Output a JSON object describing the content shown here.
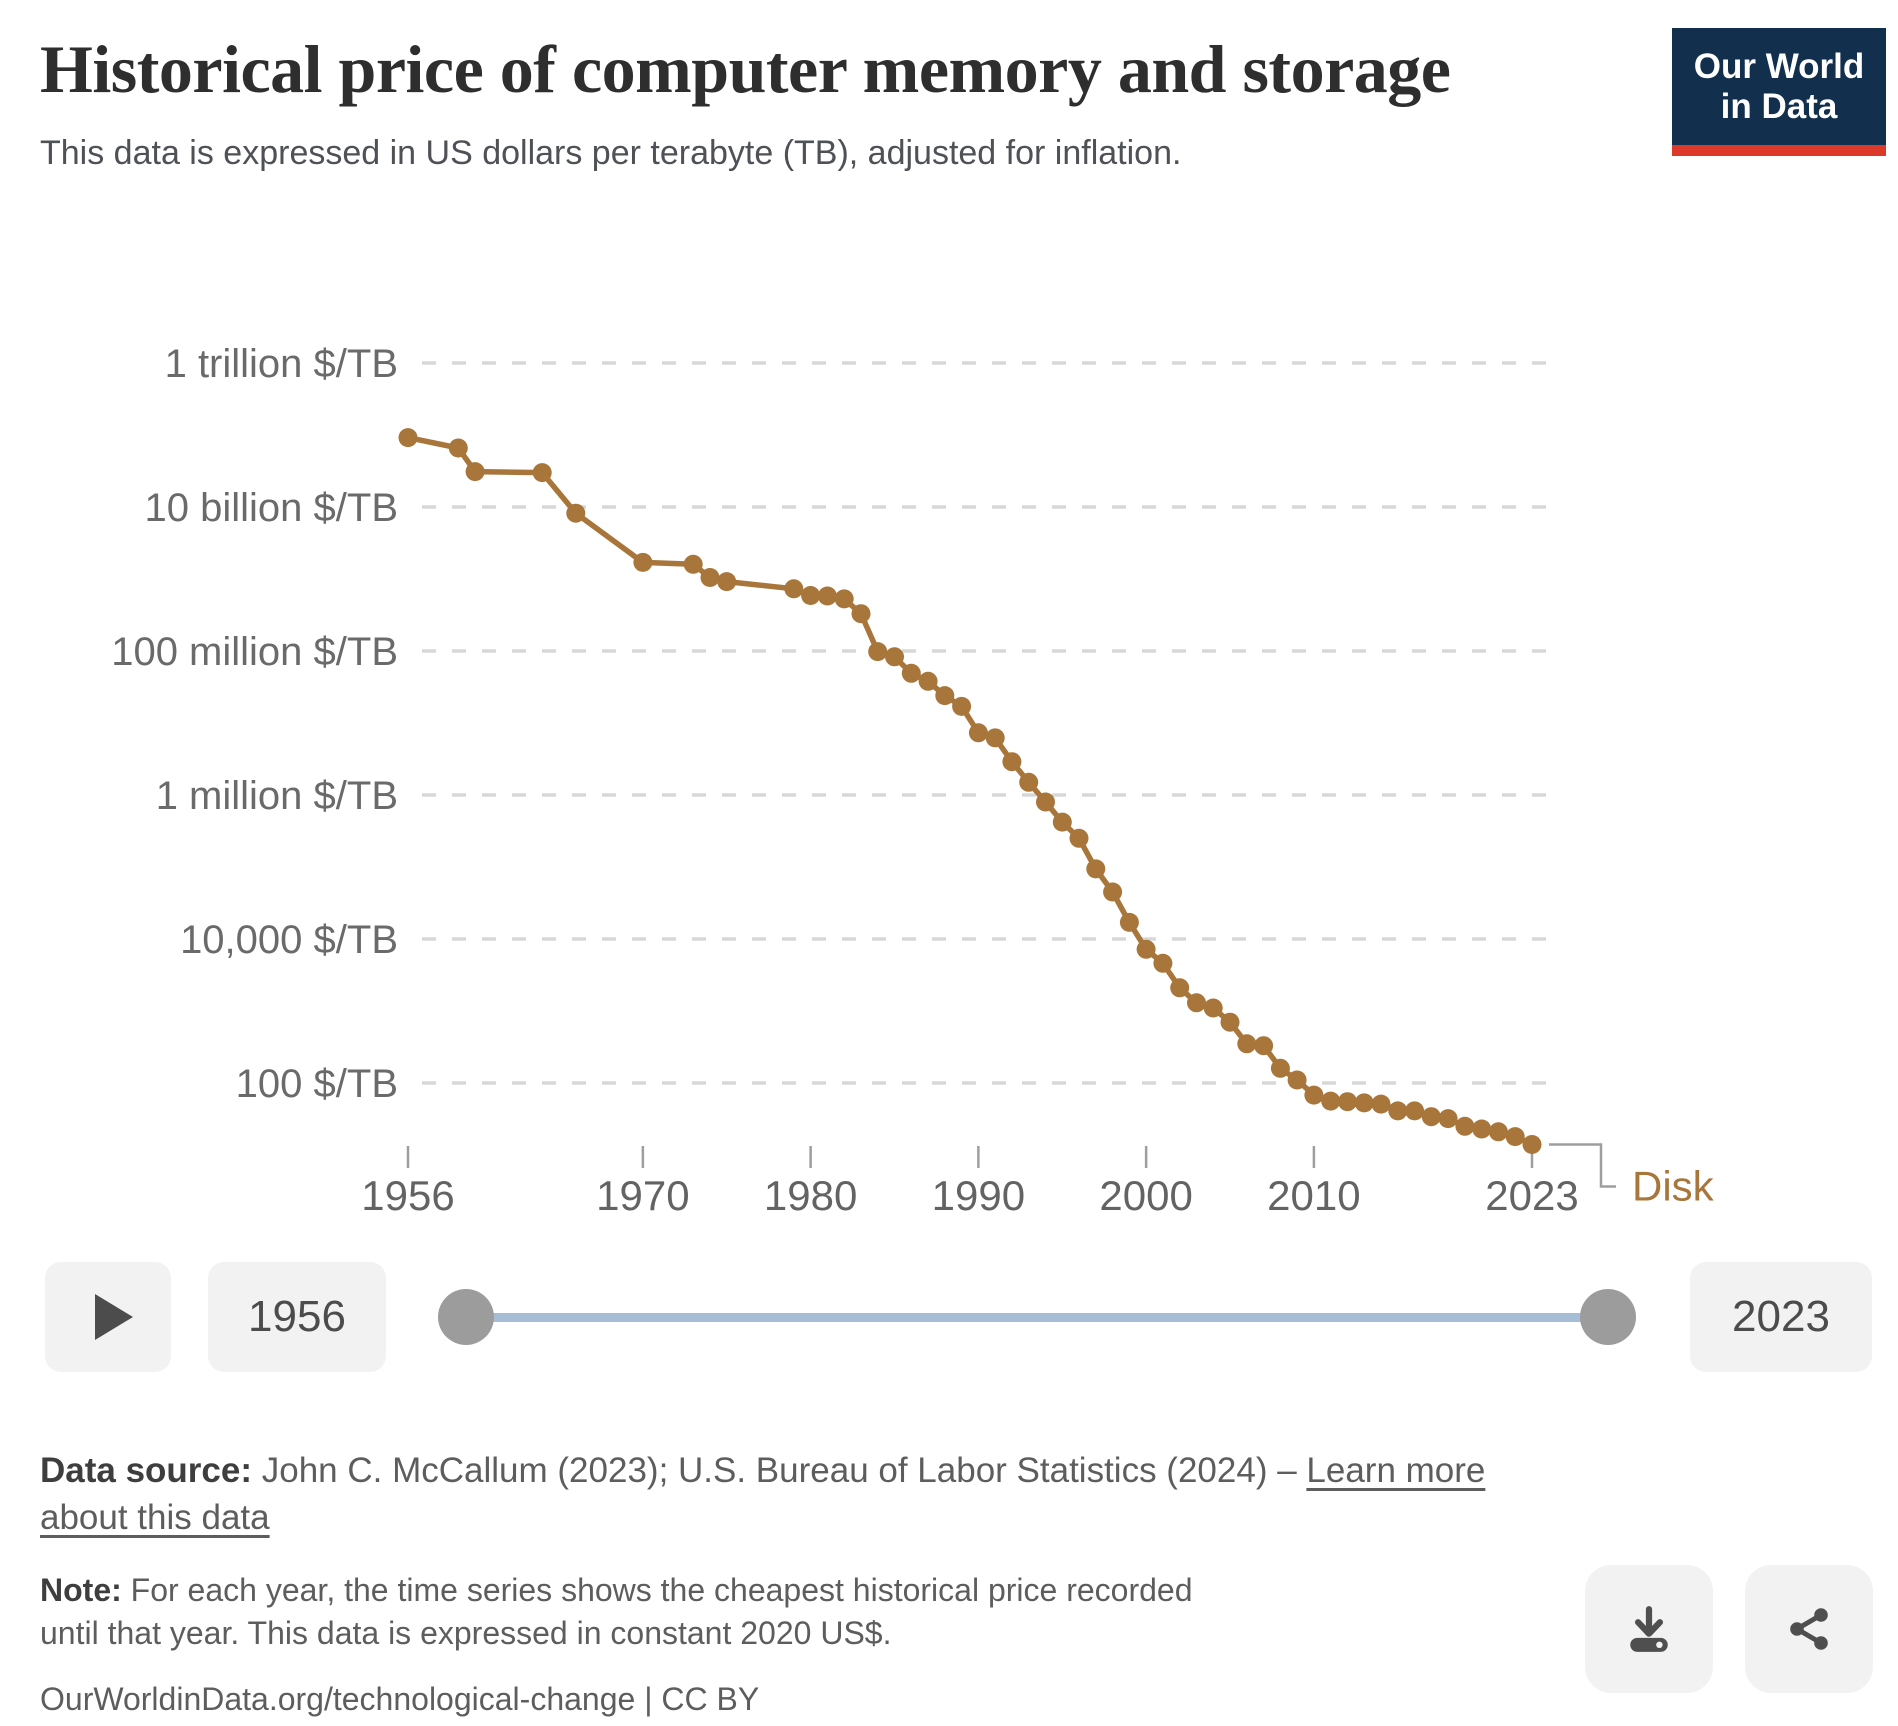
{
  "header": {
    "title": "Historical price of computer memory and storage",
    "subtitle": "This data is expressed in US dollars per terabyte (TB), adjusted for inflation.",
    "logo": {
      "line1": "Our World",
      "line2": "in Data",
      "bg_color": "#12304e",
      "accent_color": "#dd392b"
    }
  },
  "chart_data": {
    "type": "line",
    "title": "Historical price of computer memory and storage",
    "subtitle": "This data is expressed in US dollars per terabyte (TB), adjusted for inflation.",
    "unit": "$/TB",
    "y_scale": "log",
    "grid": "dashed-horizontal",
    "xlim": [
      1956,
      2023
    ],
    "ylim": [
      10,
      1000000000000
    ],
    "legend_position": "end-of-line-label",
    "x_axis": {
      "ticks": [
        {
          "label": "1956",
          "year": 1956
        },
        {
          "label": "1970",
          "year": 1970
        },
        {
          "label": "1980",
          "year": 1980
        },
        {
          "label": "1990",
          "year": 1990
        },
        {
          "label": "2000",
          "year": 2000
        },
        {
          "label": "2010",
          "year": 2010
        },
        {
          "label": "2023",
          "year": 2023
        }
      ]
    },
    "y_axis": {
      "ticks": [
        {
          "label": "1 trillion $/TB",
          "value": 1000000000000.0
        },
        {
          "label": "10 billion $/TB",
          "value": 10000000000.0
        },
        {
          "label": "100 million $/TB",
          "value": 100000000.0
        },
        {
          "label": "1 million $/TB",
          "value": 1000000.0
        },
        {
          "label": "10,000 $/TB",
          "value": 10000.0
        },
        {
          "label": "100 $/TB",
          "value": 100.0
        }
      ]
    },
    "series": [
      {
        "name": "Disk",
        "color": "#A8763B",
        "points": [
          [
            1956,
            92000000000.0
          ],
          [
            1959,
            66000000000.0
          ],
          [
            1960,
            31000000000.0
          ],
          [
            1964,
            30000000000.0
          ],
          [
            1966,
            8200000000.0
          ],
          [
            1970,
            1700000000.0
          ],
          [
            1973,
            1600000000.0
          ],
          [
            1974,
            1050000000.0
          ],
          [
            1975,
            920000000.0
          ],
          [
            1979,
            730000000.0
          ],
          [
            1980,
            590000000.0
          ],
          [
            1981,
            580000000.0
          ],
          [
            1982,
            530000000.0
          ],
          [
            1983,
            330000000.0
          ],
          [
            1984,
            98000000.0
          ],
          [
            1985,
            83000000.0
          ],
          [
            1986,
            49000000.0
          ],
          [
            1987,
            38000000.0
          ],
          [
            1988,
            24000000.0
          ],
          [
            1989,
            17000000.0
          ],
          [
            1990,
            7300000.0
          ],
          [
            1991,
            6200000.0
          ],
          [
            1992,
            2900000.0
          ],
          [
            1993,
            1500000.0
          ],
          [
            1994,
            800000.0
          ],
          [
            1995,
            420000.0
          ],
          [
            1996,
            250000.0
          ],
          [
            1997,
            94000.0
          ],
          [
            1998,
            45000.0
          ],
          [
            1999,
            17000.0
          ],
          [
            2000,
            7200.0
          ],
          [
            2001,
            4600.0
          ],
          [
            2002,
            2100.0
          ],
          [
            2003,
            1300.0
          ],
          [
            2004,
            1100.0
          ],
          [
            2005,
            700
          ],
          [
            2006,
            350
          ],
          [
            2007,
            330
          ],
          [
            2008,
            160
          ],
          [
            2009,
            110
          ],
          [
            2010,
            68
          ],
          [
            2011,
            56
          ],
          [
            2012,
            55
          ],
          [
            2013,
            53
          ],
          [
            2014,
            51
          ],
          [
            2015,
            41
          ],
          [
            2016,
            41
          ],
          [
            2017,
            34
          ],
          [
            2018,
            32
          ],
          [
            2019,
            25
          ],
          [
            2020,
            23
          ],
          [
            2021,
            21
          ],
          [
            2022,
            18
          ],
          [
            2023,
            14
          ]
        ]
      }
    ]
  },
  "timeline": {
    "start_year": "1956",
    "end_year": "2023",
    "track_color": "#a5bed6"
  },
  "footer": {
    "source_label": "Data source:",
    "source_text": " John C. McCallum (2023); U.S. Bureau of Labor Statistics (2024) – ",
    "learn_more": "Learn more about this data",
    "note_label": "Note:",
    "note_text": " For each year, the time series shows the cheapest historical price recorded until that year. This data is expressed in constant 2020 US$.",
    "citation_url": "OurWorldinData.org/technological-change",
    "citation_license": " | CC BY"
  }
}
